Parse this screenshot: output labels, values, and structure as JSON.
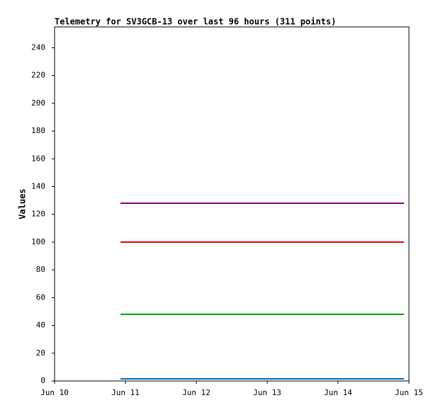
{
  "chart_data": {
    "type": "line",
    "title": "Telemetry for SV3GCB-13 over last 96 hours (311 points)",
    "y_label": "Values",
    "x": [
      10.93,
      14.93
    ],
    "xlim": [
      10,
      15
    ],
    "xticks": [
      {
        "value": 10,
        "label": "Jun 10"
      },
      {
        "value": 11,
        "label": "Jun 11"
      },
      {
        "value": 12,
        "label": "Jun 12"
      },
      {
        "value": 13,
        "label": "Jun 13"
      },
      {
        "value": 14,
        "label": "Jun 14"
      },
      {
        "value": 15,
        "label": "Jun 15"
      }
    ],
    "ylim": [
      0,
      255
    ],
    "yticks": [
      0,
      20,
      40,
      60,
      80,
      100,
      120,
      140,
      160,
      180,
      200,
      220,
      240
    ],
    "series": [
      {
        "color": "#800080",
        "values": [
          128,
          128
        ]
      },
      {
        "color": "#dd0000",
        "values": [
          100,
          100
        ]
      },
      {
        "color": "#00a000",
        "values": [
          48,
          48
        ]
      },
      {
        "color": "#0066cc",
        "values": [
          1.5,
          1.5
        ]
      }
    ]
  }
}
